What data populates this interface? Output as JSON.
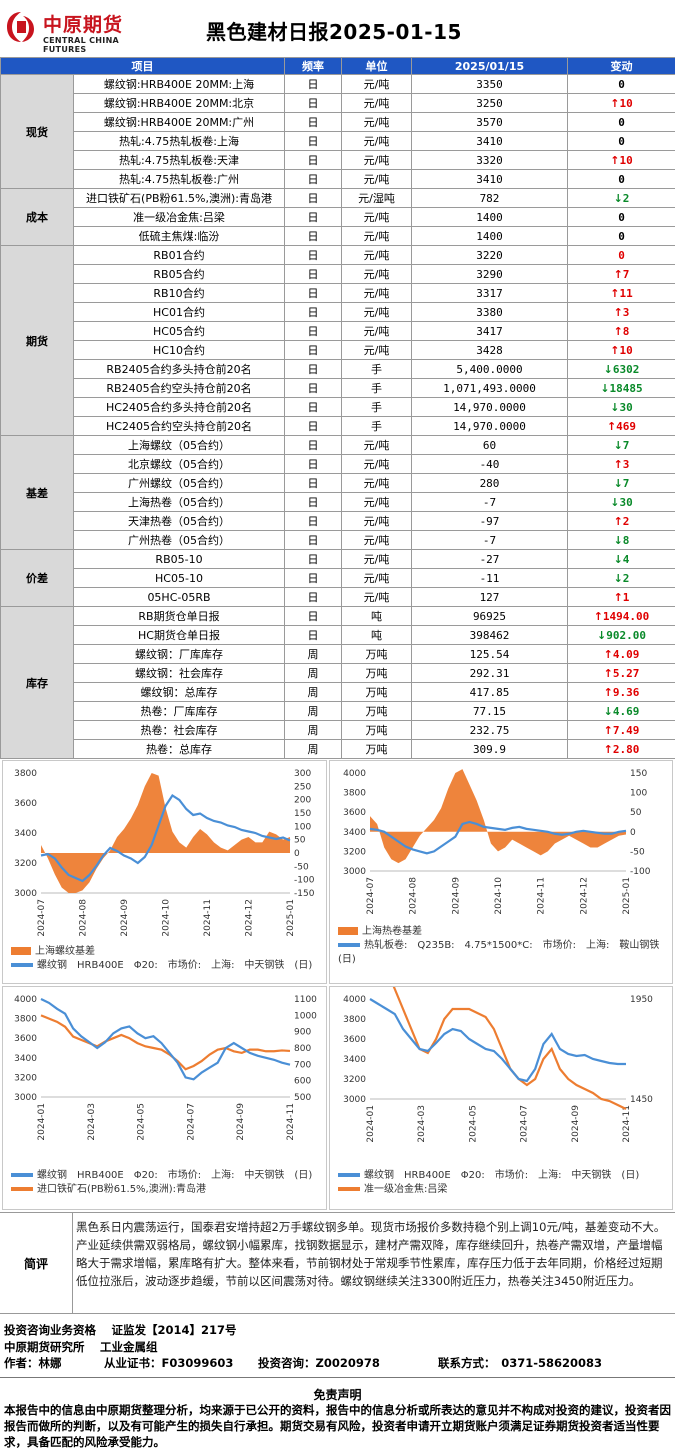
{
  "header": {
    "logo_cn": "中原期货",
    "logo_en": "CENTRAL CHINA FUTURES",
    "title": "黑色建材日报2025-01-15",
    "brand_color": "#c8141e"
  },
  "table": {
    "headers": [
      "项目",
      "频率",
      "单位",
      "2025/01/15",
      "变动"
    ],
    "header_color": "#1f57c3",
    "groups": [
      {
        "category": "现货",
        "rows": [
          {
            "item": "螺纹钢:HRB400E 20MM:上海",
            "freq": "日",
            "unit": "元/吨",
            "value": "3350",
            "change": "0",
            "dir": "none"
          },
          {
            "item": "螺纹钢:HRB400E 20MM:北京",
            "freq": "日",
            "unit": "元/吨",
            "value": "3250",
            "change": "10",
            "dir": "up"
          },
          {
            "item": "螺纹钢:HRB400E 20MM:广州",
            "freq": "日",
            "unit": "元/吨",
            "value": "3570",
            "change": "0",
            "dir": "none"
          },
          {
            "item": "热轧:4.75热轧板卷:上海",
            "freq": "日",
            "unit": "元/吨",
            "value": "3410",
            "change": "0",
            "dir": "none"
          },
          {
            "item": "热轧:4.75热轧板卷:天津",
            "freq": "日",
            "unit": "元/吨",
            "value": "3320",
            "change": "10",
            "dir": "up"
          },
          {
            "item": "热轧:4.75热轧板卷:广州",
            "freq": "日",
            "unit": "元/吨",
            "value": "3410",
            "change": "0",
            "dir": "none"
          }
        ]
      },
      {
        "category": "成本",
        "rows": [
          {
            "item": "进口铁矿石(PB粉61.5%,澳洲):青岛港",
            "freq": "日",
            "unit": "元/湿吨",
            "value": "782",
            "change": "2",
            "dir": "down"
          },
          {
            "item": "准一级冶金焦:吕梁",
            "freq": "日",
            "unit": "元/吨",
            "value": "1400",
            "change": "0",
            "dir": "none"
          },
          {
            "item": "低硫主焦煤:临汾",
            "freq": "日",
            "unit": "元/吨",
            "value": "1400",
            "change": "0",
            "dir": "none"
          }
        ]
      },
      {
        "category": "期货",
        "rows": [
          {
            "item": "RB01合约",
            "freq": "日",
            "unit": "元/吨",
            "value": "3220",
            "change": "0",
            "dir": "zero-red"
          },
          {
            "item": "RB05合约",
            "freq": "日",
            "unit": "元/吨",
            "value": "3290",
            "change": "7",
            "dir": "up"
          },
          {
            "item": "RB10合约",
            "freq": "日",
            "unit": "元/吨",
            "value": "3317",
            "change": "11",
            "dir": "up"
          },
          {
            "item": "HC01合约",
            "freq": "日",
            "unit": "元/吨",
            "value": "3380",
            "change": "3",
            "dir": "up"
          },
          {
            "item": "HC05合约",
            "freq": "日",
            "unit": "元/吨",
            "value": "3417",
            "change": "8",
            "dir": "up"
          },
          {
            "item": "HC10合约",
            "freq": "日",
            "unit": "元/吨",
            "value": "3428",
            "change": "10",
            "dir": "up"
          },
          {
            "item": "RB2405合约多头持仓前20名",
            "freq": "日",
            "unit": "手",
            "value": "5,400.0000",
            "change": "6302",
            "dir": "down"
          },
          {
            "item": "RB2405合约空头持仓前20名",
            "freq": "日",
            "unit": "手",
            "value": "1,071,493.0000",
            "change": "18485",
            "dir": "down"
          },
          {
            "item": "HC2405合约多头持仓前20名",
            "freq": "日",
            "unit": "手",
            "value": "14,970.0000",
            "change": "30",
            "dir": "down"
          },
          {
            "item": "HC2405合约空头持仓前20名",
            "freq": "日",
            "unit": "手",
            "value": "14,970.0000",
            "change": "469",
            "dir": "up"
          }
        ]
      },
      {
        "category": "基差",
        "rows": [
          {
            "item": "上海螺纹（05合约）",
            "freq": "日",
            "unit": "元/吨",
            "value": "60",
            "change": "7",
            "dir": "down"
          },
          {
            "item": "北京螺纹（05合约）",
            "freq": "日",
            "unit": "元/吨",
            "value": "-40",
            "change": "3",
            "dir": "up"
          },
          {
            "item": "广州螺纹（05合约）",
            "freq": "日",
            "unit": "元/吨",
            "value": "280",
            "change": "7",
            "dir": "down"
          },
          {
            "item": "上海热卷（05合约）",
            "freq": "日",
            "unit": "元/吨",
            "value": "-7",
            "change": "30",
            "dir": "down"
          },
          {
            "item": "天津热卷（05合约）",
            "freq": "日",
            "unit": "元/吨",
            "value": "-97",
            "change": "2",
            "dir": "up"
          },
          {
            "item": "广州热卷（05合约）",
            "freq": "日",
            "unit": "元/吨",
            "value": "-7",
            "change": "8",
            "dir": "down"
          }
        ]
      },
      {
        "category": "价差",
        "rows": [
          {
            "item": "RB05-10",
            "freq": "日",
            "unit": "元/吨",
            "value": "-27",
            "change": "4",
            "dir": "down"
          },
          {
            "item": "HC05-10",
            "freq": "日",
            "unit": "元/吨",
            "value": "-11",
            "change": "2",
            "dir": "down"
          },
          {
            "item": "05HC-05RB",
            "freq": "日",
            "unit": "元/吨",
            "value": "127",
            "change": "1",
            "dir": "up"
          }
        ]
      },
      {
        "category": "库存",
        "rows": [
          {
            "item": "RB期货仓单日报",
            "freq": "日",
            "unit": "吨",
            "value": "96925",
            "change": "1494.00",
            "dir": "up"
          },
          {
            "item": "HC期货仓单日报",
            "freq": "日",
            "unit": "吨",
            "value": "398462",
            "change": "902.00",
            "dir": "down"
          },
          {
            "item": "螺纹钢：厂库库存",
            "freq": "周",
            "unit": "万吨",
            "value": "125.54",
            "change": "4.09",
            "dir": "up"
          },
          {
            "item": "螺纹钢：社会库存",
            "freq": "周",
            "unit": "万吨",
            "value": "292.31",
            "change": "5.27",
            "dir": "up"
          },
          {
            "item": "螺纹钢：总库存",
            "freq": "周",
            "unit": "万吨",
            "value": "417.85",
            "change": "9.36",
            "dir": "up"
          },
          {
            "item": "热卷：厂库库存",
            "freq": "周",
            "unit": "万吨",
            "value": "77.15",
            "change": "4.69",
            "dir": "down"
          },
          {
            "item": "热卷：社会库存",
            "freq": "周",
            "unit": "万吨",
            "value": "232.75",
            "change": "7.49",
            "dir": "up"
          },
          {
            "item": "热卷：总库存",
            "freq": "周",
            "unit": "万吨",
            "value": "309.9",
            "change": "2.80",
            "dir": "up"
          }
        ]
      }
    ]
  },
  "chart_data": [
    {
      "type": "line",
      "series_colors": [
        "#4a8fd6",
        "#ed7d31"
      ],
      "xticks": [
        "2024-07",
        "2024-08",
        "2024-09",
        "2024-10",
        "2024-11",
        "2024-12",
        "2025-01"
      ],
      "yleft": [
        3000,
        3200,
        3400,
        3600,
        3800
      ],
      "yright": [
        -150,
        -100,
        -50,
        0,
        50,
        100,
        150,
        200,
        250,
        300
      ],
      "legend": [
        "上海螺纹基差",
        "螺纹钢　HRB400E　Φ20:　市场价:　上海:　中天钢铁　(日)"
      ],
      "price": [
        3250,
        3260,
        3230,
        3170,
        3120,
        3100,
        3080,
        3120,
        3180,
        3250,
        3300,
        3280,
        3250,
        3230,
        3200,
        3240,
        3320,
        3450,
        3580,
        3650,
        3620,
        3560,
        3520,
        3530,
        3500,
        3480,
        3470,
        3450,
        3440,
        3420,
        3410,
        3400,
        3380,
        3370,
        3360,
        3370,
        3350
      ],
      "basis": [
        30,
        -20,
        -80,
        -130,
        -150,
        -150,
        -140,
        -110,
        -60,
        -20,
        10,
        60,
        90,
        130,
        180,
        250,
        300,
        290,
        170,
        80,
        40,
        20,
        60,
        90,
        70,
        40,
        20,
        10,
        30,
        50,
        60,
        40,
        40,
        80,
        70,
        50,
        60
      ]
    },
    {
      "type": "line",
      "series_colors": [
        "#4a8fd6",
        "#ed7d31"
      ],
      "xticks": [
        "2024-07",
        "2024-08",
        "2024-09",
        "2024-10",
        "2024-11",
        "2024-12",
        "2025-01"
      ],
      "yleft": [
        3000,
        3200,
        3400,
        3600,
        3800,
        4000
      ],
      "yright": [
        -100,
        -50,
        0,
        50,
        100,
        150
      ],
      "legend": [
        "上海热卷基差",
        "热轧板卷:　Q235B:　4.75*1500*C:　市场价:　上海:　鞍山钢铁　(日)"
      ],
      "price": [
        3430,
        3420,
        3400,
        3350,
        3300,
        3250,
        3220,
        3200,
        3180,
        3200,
        3250,
        3300,
        3350,
        3480,
        3500,
        3480,
        3450,
        3440,
        3430,
        3420,
        3440,
        3450,
        3430,
        3420,
        3410,
        3400,
        3380,
        3370,
        3380,
        3400,
        3410,
        3400,
        3390,
        3380,
        3380,
        3400,
        3410
      ],
      "basis": [
        40,
        20,
        -40,
        -70,
        -80,
        -70,
        -40,
        -10,
        10,
        30,
        60,
        110,
        150,
        160,
        120,
        80,
        30,
        -30,
        -50,
        -40,
        -20,
        -30,
        -40,
        -50,
        -60,
        -50,
        -30,
        -20,
        -10,
        -20,
        -30,
        -40,
        -40,
        -30,
        -20,
        -10,
        -7
      ]
    },
    {
      "type": "line",
      "series_colors": [
        "#4a8fd6",
        "#ed7d31"
      ],
      "xticks": [
        "2024-01",
        "2024-03",
        "2024-05",
        "2024-07",
        "2024-09",
        "2024-11"
      ],
      "yleft": [
        3000,
        3200,
        3400,
        3600,
        3800,
        4000
      ],
      "yright": [
        500,
        600,
        700,
        800,
        900,
        1000,
        1100
      ],
      "legend": [
        "螺纹钢　HRB400E　Φ20:　市场价:　上海:　中天钢铁　(日)",
        "进口铁矿石(PB粉61.5%,澳洲):青岛港"
      ],
      "price": [
        4000,
        3960,
        3900,
        3850,
        3700,
        3620,
        3560,
        3500,
        3560,
        3650,
        3700,
        3720,
        3650,
        3600,
        3620,
        3550,
        3450,
        3350,
        3200,
        3180,
        3250,
        3300,
        3350,
        3500,
        3550,
        3500,
        3450,
        3420,
        3400,
        3380,
        3350,
        3330
      ],
      "ore": [
        1000,
        980,
        960,
        930,
        870,
        850,
        830,
        810,
        840,
        860,
        880,
        860,
        830,
        810,
        800,
        790,
        760,
        720,
        670,
        690,
        720,
        760,
        790,
        800,
        780,
        770,
        790,
        790,
        780,
        780,
        785,
        782
      ]
    },
    {
      "type": "line",
      "series_colors": [
        "#4a8fd6",
        "#ed7d31"
      ],
      "xticks": [
        "2024-01",
        "2024-03",
        "2024-05",
        "2024-07",
        "2024-09",
        "2024-11"
      ],
      "yleft": [
        3000,
        3200,
        3400,
        3600,
        3800,
        4000
      ],
      "yright": [
        1450,
        1950
      ],
      "legend": [
        "螺纹钢　HRB400E　Φ20:　市场价:　上海:　中天钢铁　(日)",
        "准一级冶金焦:吕梁"
      ],
      "price": [
        4000,
        3950,
        3900,
        3850,
        3700,
        3600,
        3500,
        3480,
        3560,
        3650,
        3700,
        3680,
        3600,
        3550,
        3500,
        3480,
        3400,
        3300,
        3200,
        3180,
        3300,
        3550,
        3650,
        3500,
        3450,
        3430,
        3440,
        3400,
        3380,
        3360,
        3350,
        3350
      ],
      "coke": [
        2150,
        2150,
        2100,
        2000,
        1900,
        1800,
        1700,
        1680,
        1750,
        1850,
        1900,
        1900,
        1900,
        1880,
        1860,
        1800,
        1700,
        1600,
        1550,
        1520,
        1550,
        1650,
        1700,
        1600,
        1550,
        1520,
        1500,
        1480,
        1450,
        1440,
        1420,
        1400
      ]
    }
  ],
  "review": {
    "label": "简评",
    "text": "黑色系日内震荡运行，国泰君安增持超2万手螺纹钢多单。现货市场报价多数持稳个别上调10元/吨，基差变动不大。产业延续供需双弱格局，螺纹钢小幅累库，找钢数据显示，建材产需双降，库存继续回升，热卷产需双增，产量增幅略大于需求增幅，累库略有扩大。整体来看，节前钢材处于常规季节性累库，库存压力低于去年同期，价格经过短期低位拉涨后，波动逐步趋缓，节前以区间震荡对待。螺纹钢继续关注3300附近压力，热卷关注3450附近压力。"
  },
  "footer": {
    "qual": "投资咨询业务资格　 证监发【2014】217号",
    "org": "中原期货研究所　 工业金属组",
    "author_label": "作者：林娜",
    "cert": "从业证书：F03099603",
    "consult": "投资咨询：Z0020978",
    "contact": "联系方式：　0371-58620083",
    "disclaimer_title": "免责声明",
    "disclaimer": "本报告中的信息由中原期货整理分析，均来源于已公开的资料，报告中的信息分析或所表达的意见并不构成对投资的建议，投资者因报告而做所的判断，以及有可能产生的损失自行承担。期货交易有风险，投资者申请开立期货账户须满足证券期货投资者适当性要求，具备匹配的风险承受能力。"
  }
}
